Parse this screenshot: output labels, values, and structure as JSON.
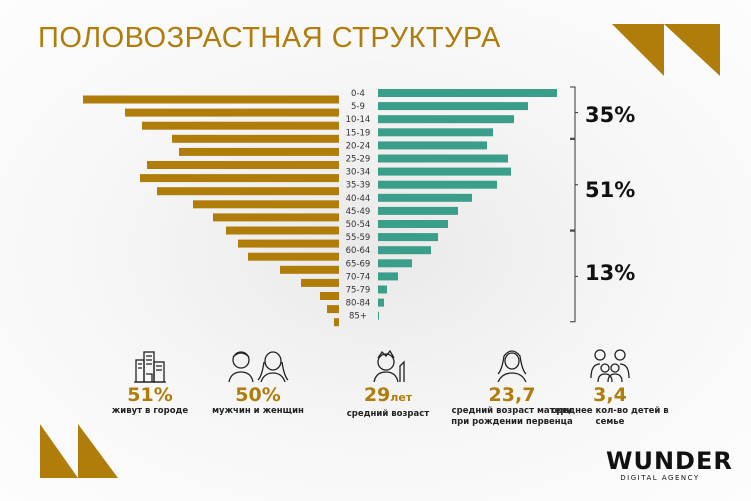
{
  "title": "ПОЛОВОЗРАСТНАЯ СТРУКТУРА",
  "colors": {
    "left": "#b07d0a",
    "right": "#3a9e8a",
    "accent": "#b07d0a"
  },
  "chart_data": {
    "type": "bar",
    "orientation": "horizontal-pyramid",
    "categories": [
      "0-4",
      "5-9",
      "10-14",
      "15-19",
      "20-24",
      "25-29",
      "30-34",
      "35-39",
      "40-44",
      "45-49",
      "50-54",
      "55-59",
      "60-64",
      "65-69",
      "70-74",
      "75-79",
      "80-84",
      "85+"
    ],
    "series": [
      {
        "values": [
          256,
          214,
          197,
          167,
          160,
          192,
          199,
          182,
          146,
          126,
          113,
          101,
          91,
          59,
          38,
          19,
          12,
          5
        ],
        "color": "#b07d0a"
      },
      {
        "values": [
          179,
          150,
          136,
          115,
          109,
          130,
          133,
          119,
          94,
          80,
          70,
          60,
          53,
          34,
          20,
          9,
          6,
          1
        ],
        "color": "#3a9e8a"
      }
    ],
    "groups": [
      {
        "label": "35%",
        "from": "0-4",
        "to": "15-19"
      },
      {
        "label": "51%",
        "from": "20-24",
        "to": "50-54"
      },
      {
        "label": "13%",
        "from": "55-59",
        "to": "85+"
      }
    ]
  },
  "stats": [
    {
      "icon": "city-icon",
      "value": "51%",
      "caption": "живут в городе"
    },
    {
      "icon": "man-woman-icon",
      "value": "50%",
      "caption": "мужчин и женщин"
    },
    {
      "icon": "person-icon",
      "value": "29",
      "unit": "лет",
      "caption": "средний возраст"
    },
    {
      "icon": "woman-icon",
      "value": "23,7",
      "caption": "средний возраст матери при рождении первенца"
    },
    {
      "icon": "family-icon",
      "value": "3,4",
      "caption": "среднее кол-во детей в семье"
    }
  ],
  "logo": {
    "name": "WUNDER",
    "sub": "DIGITAL AGENCY"
  }
}
